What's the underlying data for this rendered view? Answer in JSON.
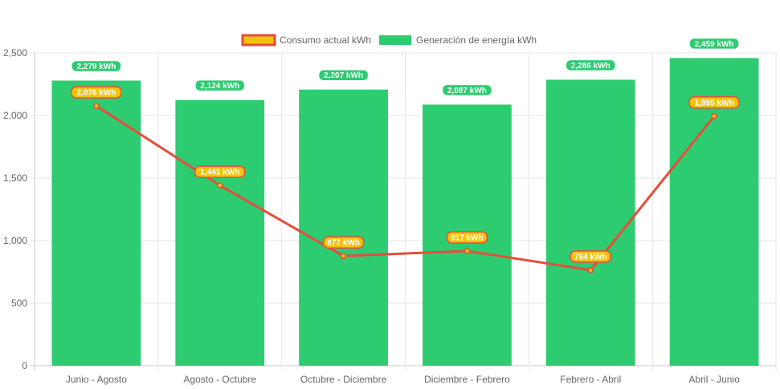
{
  "chart_data": {
    "type": "bar",
    "categories": [
      "Junio - Agosto",
      "Agosto - Octubre",
      "Octubre - Diciembre",
      "Diciembre - Febrero",
      "Febrero - Abril",
      "Abril - Junio"
    ],
    "series": [
      {
        "name": "Generación de energía kWh",
        "type": "bar",
        "values": [
          2279,
          2124,
          2207,
          2087,
          2286,
          2459
        ],
        "labels": [
          "2,279 kWh",
          "2,124 kWh",
          "2,207 kWh",
          "2,087 kWh",
          "2,286 kWh",
          "2,459 kWh"
        ]
      },
      {
        "name": "Consumo actual kWh",
        "type": "line",
        "values": [
          2076,
          1441,
          877,
          917,
          764,
          1995
        ],
        "labels": [
          "2,076 kWh",
          "1,441 kWh",
          "877 kWh",
          "917 kWh",
          "764 kWh",
          "1,995 kWh"
        ]
      }
    ],
    "ylim": [
      0,
      2500
    ],
    "yticks": [
      0,
      500,
      1000,
      1500,
      2000,
      2500
    ],
    "ytick_labels": [
      "0",
      "500",
      "1,000",
      "1,500",
      "2,000",
      "2,500"
    ],
    "xlabel": "",
    "ylabel": "",
    "title": "",
    "grid": true,
    "legend": "top-center"
  },
  "colors": {
    "bar": "#2ecc71",
    "line": "#e74c3c",
    "line_point": "#f1c40f",
    "line_label_bg": "#f1c40f",
    "bar_label_bg": "#2ecc71",
    "grid": "#e6e6e6",
    "axis": "#cccccc"
  }
}
